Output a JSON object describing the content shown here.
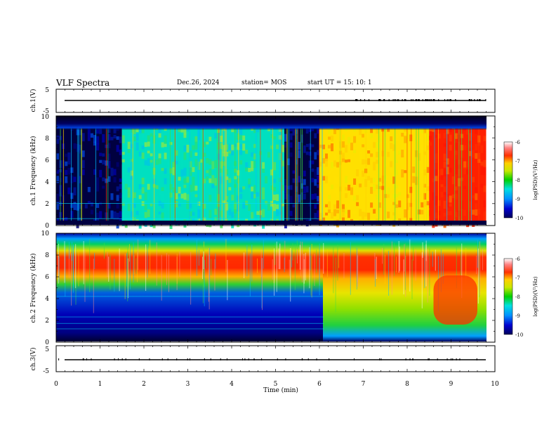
{
  "header": {
    "title": "VLF Spectra",
    "date": "Dec.26, 2024",
    "station": "station= MOS",
    "start": "start  UT =   15: 10: 1"
  },
  "chart_data": [
    {
      "type": "line",
      "name": "ch1-voltage",
      "ylabel": "ch.1(V)",
      "ylim": [
        -5,
        5
      ],
      "yticks": [
        "5",
        "-5"
      ],
      "x": [
        0,
        10
      ],
      "values": [
        0,
        0
      ]
    },
    {
      "type": "heatmap",
      "name": "ch1-spectrogram",
      "ylabel": "ch.1 Frequency (kHz)",
      "xlim": [
        0,
        10
      ],
      "ylim": [
        0,
        10
      ],
      "yticks": [
        "0",
        "2",
        "4",
        "6",
        "8",
        "10"
      ],
      "colorbar": {
        "label": "log(PSD)(V²/Hz)",
        "range": [
          -10,
          -6
        ],
        "ticks": [
          "-6",
          "-7",
          "-8",
          "-9",
          "-10"
        ]
      },
      "time_segments_min": [
        {
          "from": 0,
          "to": 1.5,
          "level": "low"
        },
        {
          "from": 1.5,
          "to": 5.2,
          "level": "medium"
        },
        {
          "from": 5.2,
          "to": 6.0,
          "level": "low"
        },
        {
          "from": 6.0,
          "to": 8.5,
          "level": "high"
        },
        {
          "from": 8.5,
          "to": 9.8,
          "level": "very-high"
        }
      ]
    },
    {
      "type": "heatmap",
      "name": "ch2-spectrogram",
      "ylabel": "ch.2 Frequency (kHz)",
      "xlim": [
        0,
        10
      ],
      "ylim": [
        0,
        10
      ],
      "yticks": [
        "0",
        "2",
        "4",
        "6",
        "8",
        "10"
      ],
      "colorbar": {
        "label": "log(PSD)(V²/Hz)",
        "range": [
          -10,
          -6
        ],
        "ticks": [
          "-6",
          "-7",
          "-8",
          "-9",
          "-10"
        ]
      },
      "band_peak_khz": [
        6,
        8
      ]
    },
    {
      "type": "line",
      "name": "ch3-voltage",
      "ylabel": "ch.3(V)",
      "ylim": [
        -5,
        5
      ],
      "yticks": [
        "5",
        "-5"
      ],
      "x": [
        0,
        10
      ],
      "values": [
        0,
        0
      ]
    }
  ],
  "xaxis": {
    "label": "Time  (min)",
    "ticks": [
      "0",
      "1",
      "2",
      "3",
      "4",
      "5",
      "6",
      "7",
      "8",
      "9",
      "10"
    ]
  }
}
